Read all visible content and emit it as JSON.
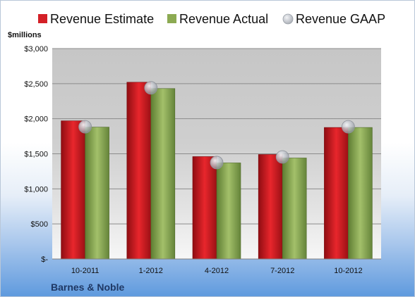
{
  "chart_data": {
    "type": "bar",
    "title": "",
    "company": "Barnes & Noble",
    "ylabel": "$millions",
    "xlabel": "",
    "ylim": [
      0,
      3000
    ],
    "yticks": [
      0,
      500,
      1000,
      1500,
      2000,
      2500,
      3000
    ],
    "ytick_labels": [
      "$-",
      "$500",
      "$1,000",
      "$1,500",
      "$2,000",
      "$2,500",
      "$3,000"
    ],
    "categories": [
      "10-2011",
      "1-2012",
      "4-2012",
      "7-2012",
      "10-2012"
    ],
    "series": [
      {
        "name": "Revenue Estimate",
        "kind": "bar",
        "color": "#d42027",
        "values": [
          1970,
          2520,
          1460,
          1490,
          1875
        ]
      },
      {
        "name": "Revenue Actual",
        "kind": "bar",
        "color": "#8caa52",
        "values": [
          1880,
          2430,
          1370,
          1440,
          1875
        ]
      },
      {
        "name": "Revenue GAAP",
        "kind": "marker",
        "color": "#b8bcc4",
        "values": [
          1885,
          2440,
          1375,
          1455,
          1885
        ]
      }
    ],
    "grid": true,
    "legend": "top"
  }
}
